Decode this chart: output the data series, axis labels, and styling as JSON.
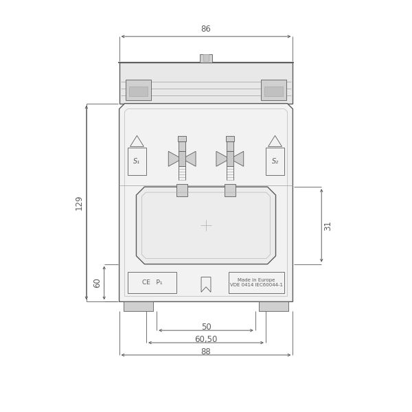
{
  "bg_color": "#ffffff",
  "lc": "#5a5a5a",
  "dc": "#5a5a5a",
  "lg": "#cccccc",
  "mg": "#aaaaaa",
  "fc_body": "#f2f2f2",
  "fc_rail": "#e8e8e8",
  "fc_dark": "#d0d0d0",
  "dim_86": "86",
  "dim_129": "129",
  "dim_60": "60",
  "dim_31": "31",
  "dim_50": "50",
  "dim_60_50": "60,50",
  "dim_88": "88",
  "label_s1": "S₁",
  "label_s2": "S₂",
  "label_ce": "CE   P₁",
  "label_made": "Made in Europe\nVDE 0414 IEC60044-1"
}
